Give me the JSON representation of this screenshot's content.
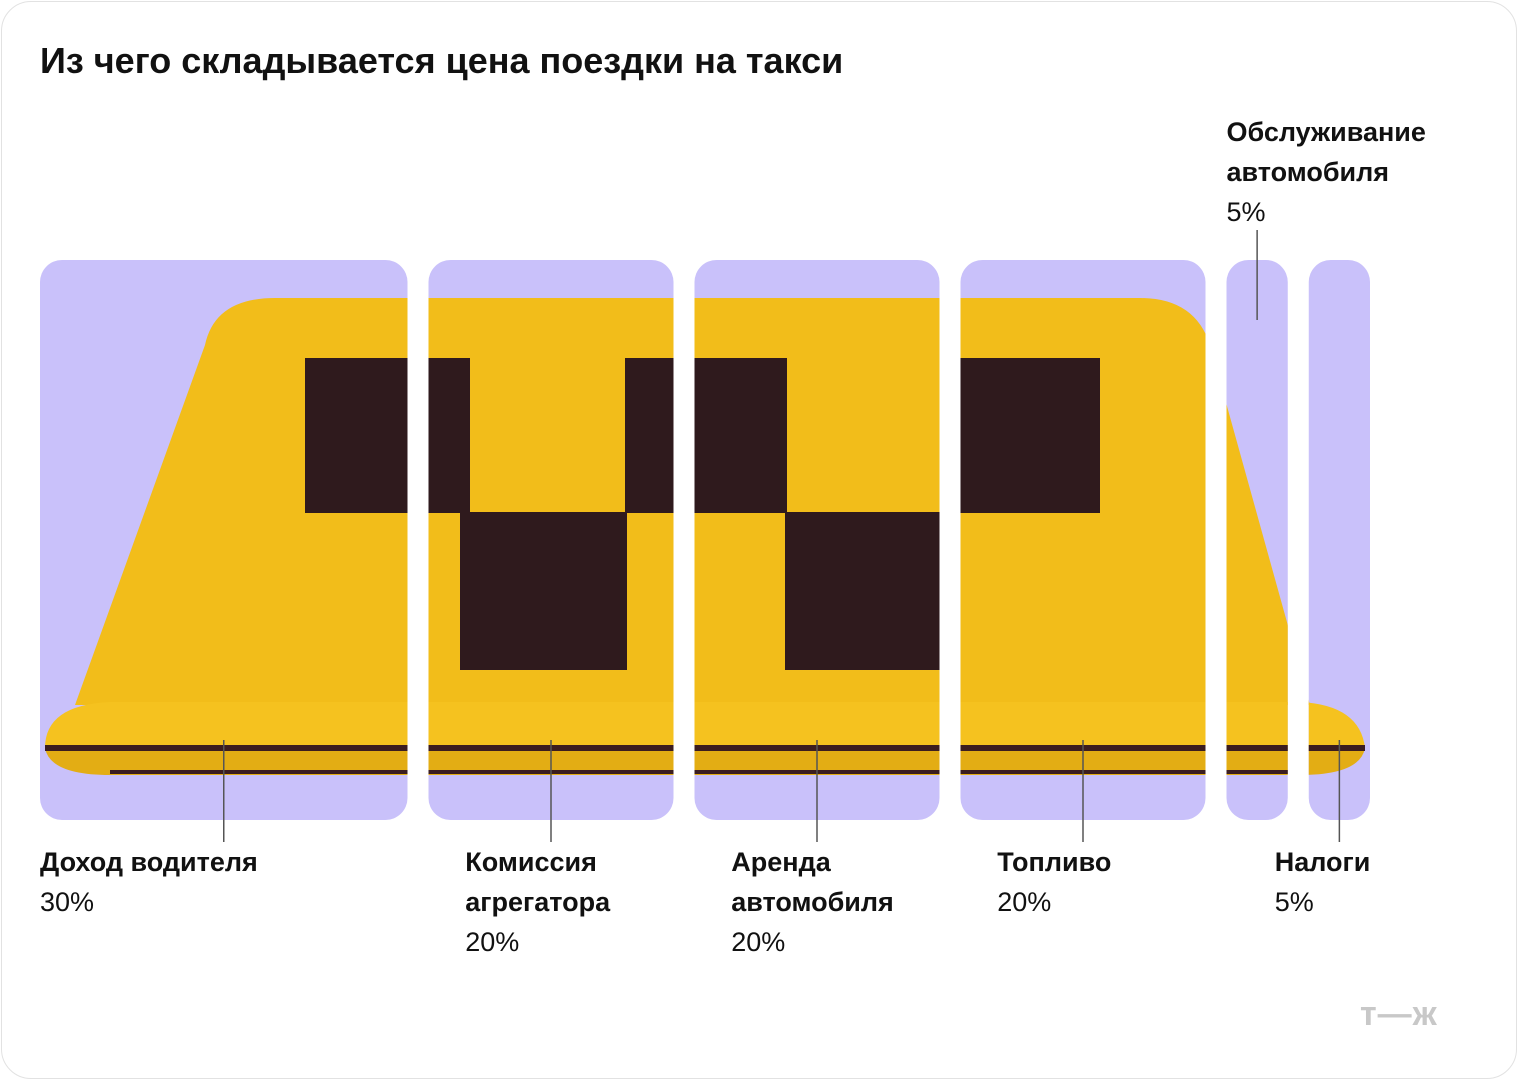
{
  "chart_data": {
    "type": "proportion",
    "title": "Из чего складывается цена поездки на такси",
    "categories": [
      "Доход водителя",
      "Комиссия агрегатора",
      "Аренда автомобиля",
      "Топливо",
      "Обслуживание автомобиля",
      "Налоги"
    ],
    "values": [
      30,
      20,
      20,
      20,
      5,
      5
    ],
    "value_labels": [
      "30%",
      "20%",
      "20%",
      "20%",
      "5%",
      "5%"
    ],
    "color": "#c9c1fa",
    "brand": "т—ж"
  }
}
